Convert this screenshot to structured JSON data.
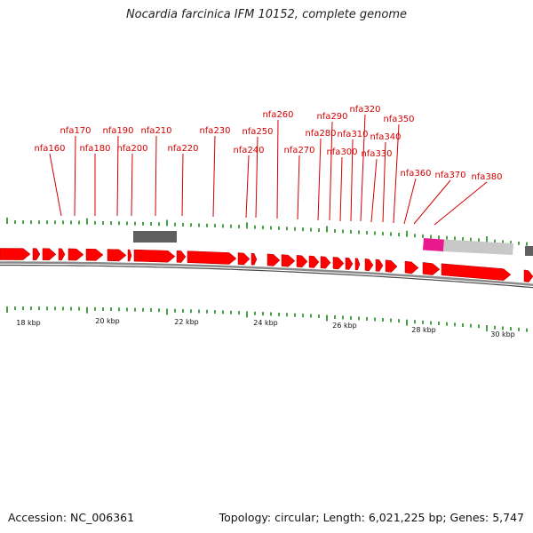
{
  "title": "Nocardia farcinica IFM 10152, complete genome",
  "footer": {
    "accession": "Accession: NC_006361",
    "info": "Topology: circular; Length: 6,021,225 bp; Genes: 5,747"
  },
  "colors": {
    "gene": "#ff0000",
    "label": "#d40000",
    "tick": "#1a8a1a",
    "backbone": "#888888",
    "feature_dark": "#5f5f5f",
    "feature_light": "#c8c8c8",
    "feature_pink": "#e8198b"
  },
  "axis_labels": [
    "18 kbp",
    "20 kbp",
    "22 kbp",
    "24 kbp",
    "26 kbp",
    "28 kbp",
    "30 kbp"
  ],
  "gene_labels": [
    "nfa160",
    "nfa170",
    "nfa180",
    "nfa190",
    "nfa200",
    "nfa210",
    "nfa220",
    "nfa230",
    "nfa240",
    "nfa250",
    "nfa260",
    "nfa270",
    "nfa280",
    "nfa290",
    "nfa300",
    "nfa310",
    "nfa320",
    "nfa330",
    "nfa340",
    "nfa350",
    "nfa360",
    "nfa370",
    "nfa380"
  ]
}
